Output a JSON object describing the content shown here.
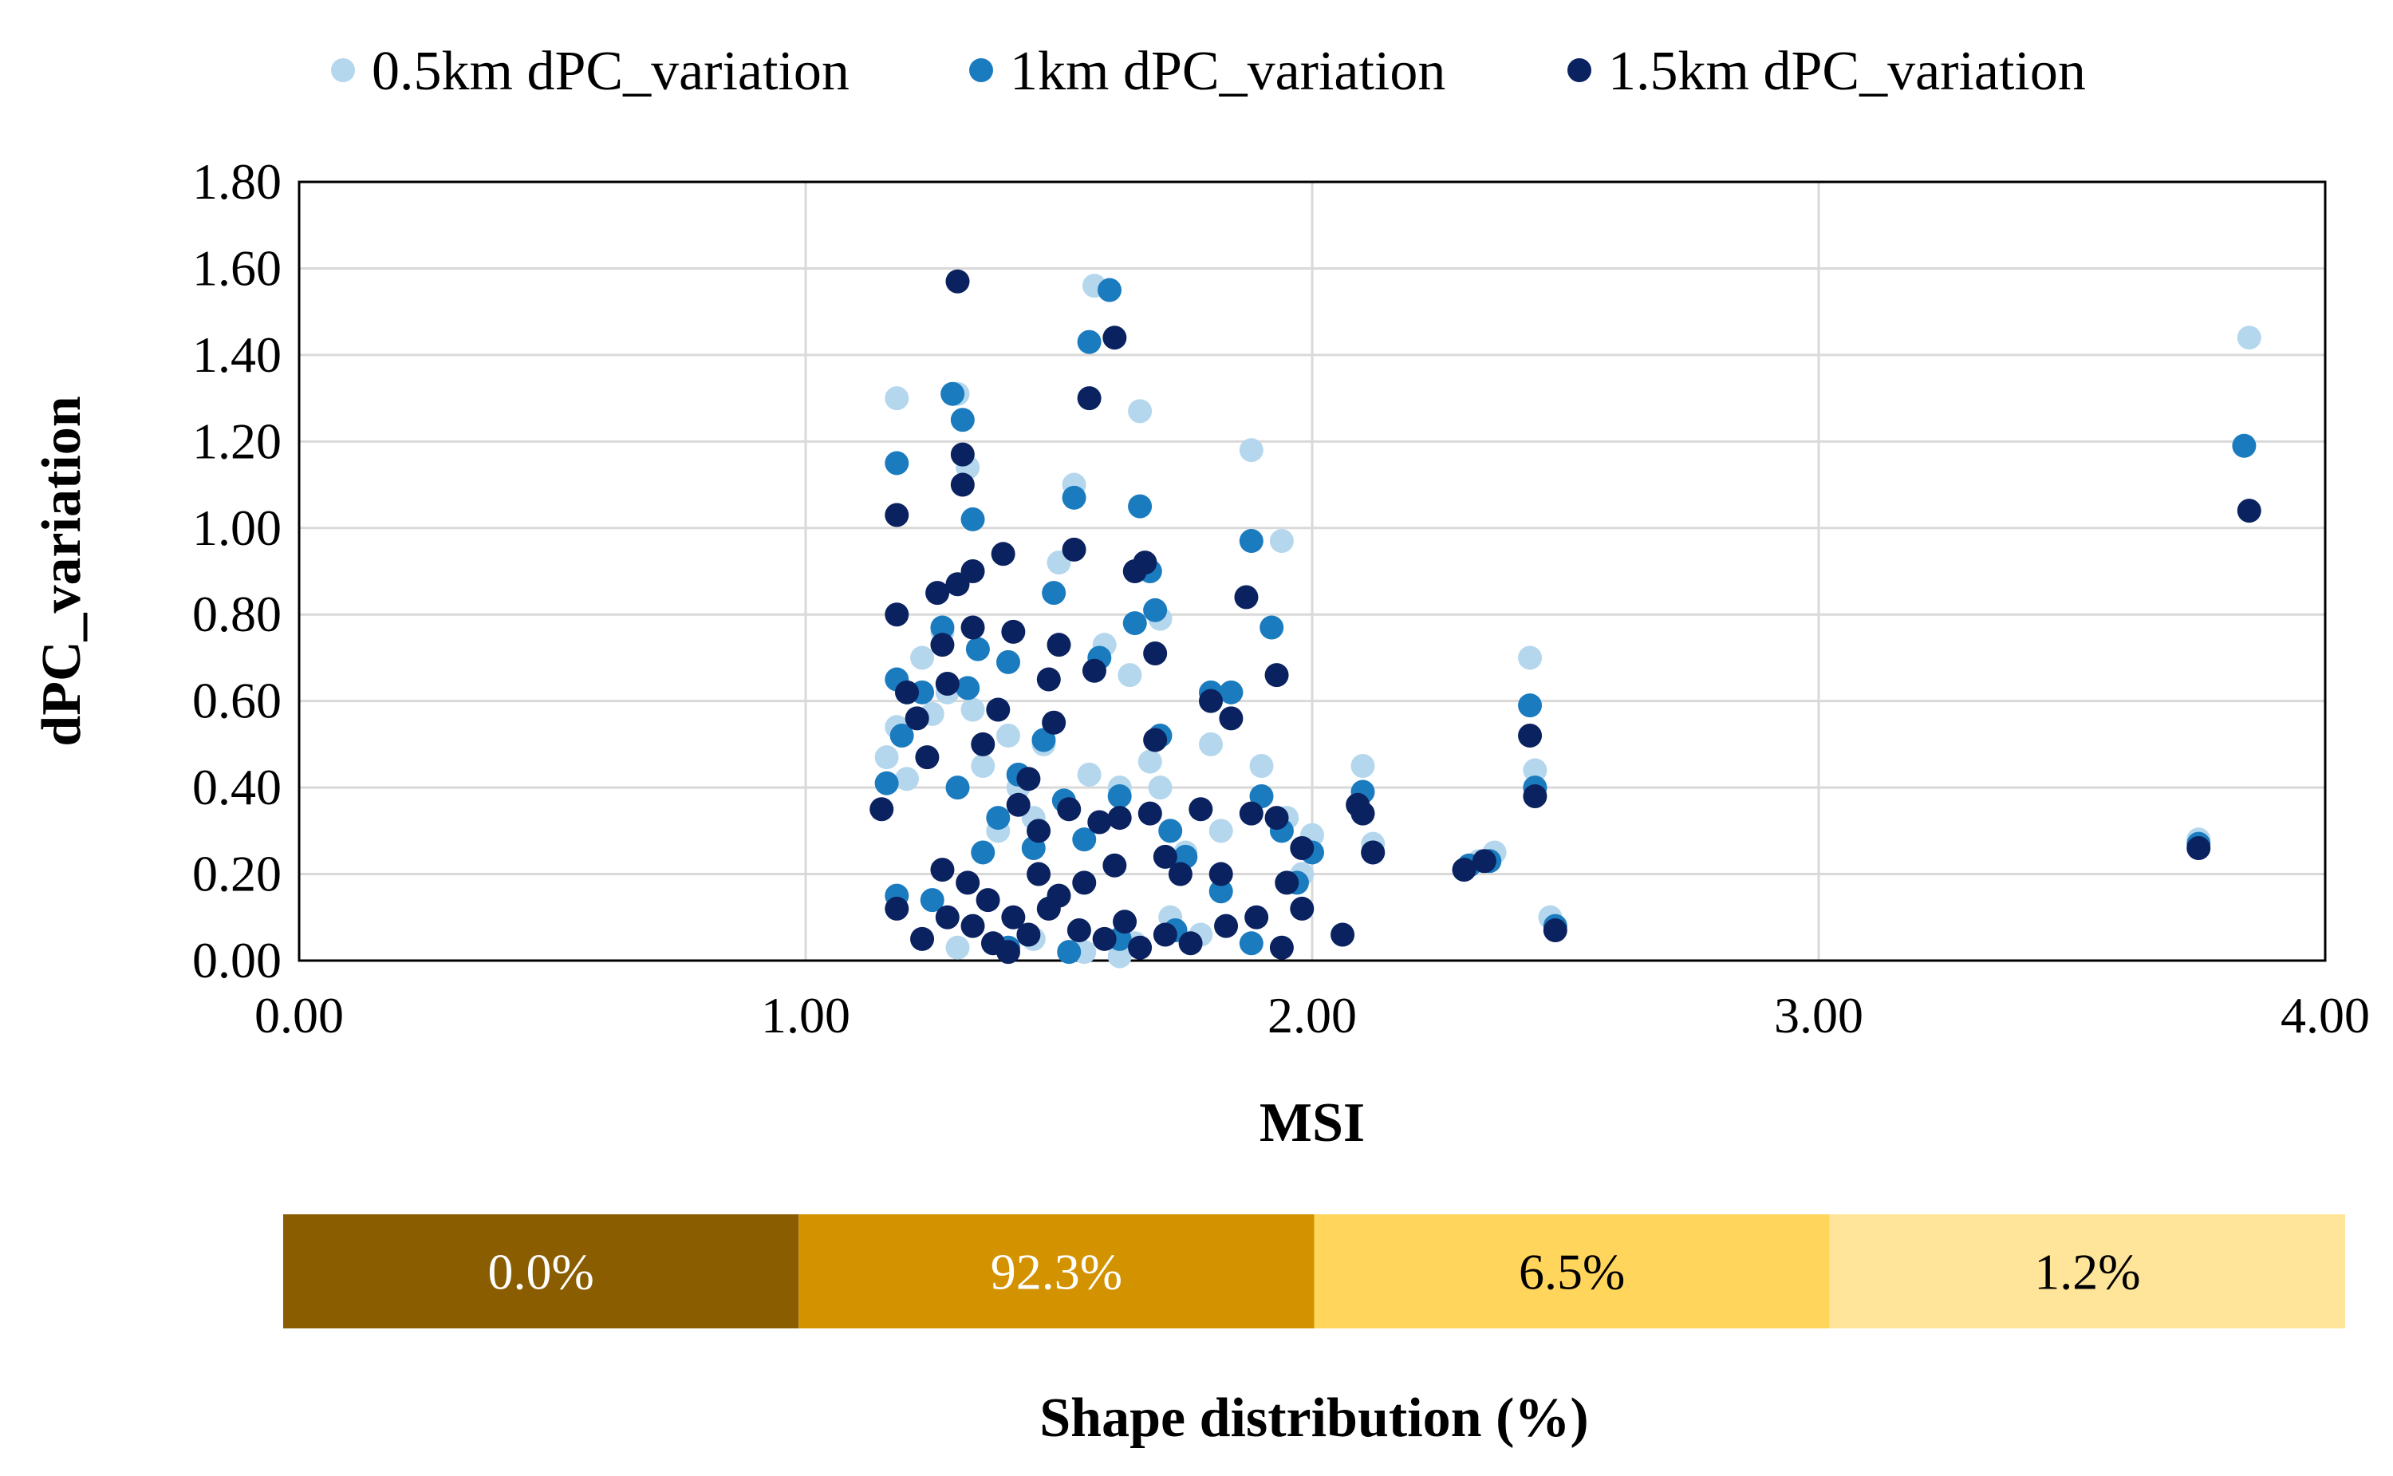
{
  "chart_data": [
    {
      "type": "scatter",
      "xlabel": "MSI",
      "ylabel": "dPC_variation",
      "xlim": [
        0,
        4
      ],
      "ylim": [
        0,
        1.8
      ],
      "x_ticks": [
        "0.00",
        "1.00",
        "2.00",
        "3.00",
        "4.00"
      ],
      "y_ticks": [
        "0.00",
        "0.20",
        "0.40",
        "0.60",
        "0.80",
        "1.00",
        "1.20",
        "1.40",
        "1.60",
        "1.80"
      ],
      "grid": true,
      "legend_position": "top",
      "series": [
        {
          "name": "0.5km dPC_variation",
          "color": "#b4d7ee",
          "points": [
            [
              1.18,
              1.3
            ],
            [
              1.18,
              0.54
            ],
            [
              1.16,
              0.47
            ],
            [
              1.2,
              0.42
            ],
            [
              1.23,
              0.7
            ],
            [
              1.25,
              0.57
            ],
            [
              1.27,
              0.76
            ],
            [
              1.28,
              0.62
            ],
            [
              1.3,
              1.31
            ],
            [
              1.32,
              1.14
            ],
            [
              1.33,
              0.58
            ],
            [
              1.35,
              0.45
            ],
            [
              1.38,
              0.3
            ],
            [
              1.4,
              0.52
            ],
            [
              1.42,
              0.4
            ],
            [
              1.45,
              0.33
            ],
            [
              1.47,
              0.5
            ],
            [
              1.5,
              0.92
            ],
            [
              1.53,
              1.1
            ],
            [
              1.56,
              0.43
            ],
            [
              1.57,
              1.56
            ],
            [
              1.59,
              0.73
            ],
            [
              1.62,
              0.4
            ],
            [
              1.64,
              0.66
            ],
            [
              1.66,
              1.27
            ],
            [
              1.68,
              0.46
            ],
            [
              1.7,
              0.4
            ],
            [
              1.7,
              0.79
            ],
            [
              1.72,
              0.1
            ],
            [
              1.75,
              0.25
            ],
            [
              1.8,
              0.5
            ],
            [
              1.82,
              0.3
            ],
            [
              1.88,
              1.18
            ],
            [
              1.9,
              0.45
            ],
            [
              1.94,
              0.97
            ],
            [
              1.95,
              0.33
            ],
            [
              1.98,
              0.2
            ],
            [
              2.0,
              0.29
            ],
            [
              2.1,
              0.45
            ],
            [
              2.12,
              0.27
            ],
            [
              2.33,
              0.23
            ],
            [
              2.36,
              0.25
            ],
            [
              2.43,
              0.7
            ],
            [
              2.44,
              0.44
            ],
            [
              2.47,
              0.1
            ],
            [
              3.75,
              0.28
            ],
            [
              3.85,
              1.44
            ],
            [
              1.3,
              0.03
            ],
            [
              1.45,
              0.05
            ],
            [
              1.55,
              0.02
            ],
            [
              1.65,
              0.04
            ],
            [
              1.78,
              0.06
            ],
            [
              1.62,
              0.01
            ]
          ]
        },
        {
          "name": "1km dPC_variation",
          "color": "#1b7bbf",
          "points": [
            [
              1.18,
              1.15
            ],
            [
              1.18,
              0.65
            ],
            [
              1.19,
              0.52
            ],
            [
              1.16,
              0.41
            ],
            [
              1.18,
              0.15
            ],
            [
              1.23,
              0.62
            ],
            [
              1.25,
              0.14
            ],
            [
              1.27,
              0.77
            ],
            [
              1.29,
              1.31
            ],
            [
              1.3,
              0.4
            ],
            [
              1.31,
              1.25
            ],
            [
              1.32,
              0.63
            ],
            [
              1.33,
              1.02
            ],
            [
              1.34,
              0.72
            ],
            [
              1.35,
              0.25
            ],
            [
              1.38,
              0.33
            ],
            [
              1.4,
              0.69
            ],
            [
              1.42,
              0.43
            ],
            [
              1.45,
              0.26
            ],
            [
              1.47,
              0.51
            ],
            [
              1.49,
              0.85
            ],
            [
              1.51,
              0.37
            ],
            [
              1.53,
              1.07
            ],
            [
              1.55,
              0.28
            ],
            [
              1.56,
              1.43
            ],
            [
              1.58,
              0.7
            ],
            [
              1.6,
              1.55
            ],
            [
              1.62,
              0.38
            ],
            [
              1.65,
              0.78
            ],
            [
              1.66,
              1.05
            ],
            [
              1.68,
              0.9
            ],
            [
              1.69,
              0.81
            ],
            [
              1.7,
              0.52
            ],
            [
              1.72,
              0.3
            ],
            [
              1.75,
              0.24
            ],
            [
              1.8,
              0.62
            ],
            [
              1.84,
              0.62
            ],
            [
              1.82,
              0.16
            ],
            [
              1.88,
              0.97
            ],
            [
              1.9,
              0.38
            ],
            [
              1.92,
              0.77
            ],
            [
              1.94,
              0.3
            ],
            [
              1.97,
              0.18
            ],
            [
              2.0,
              0.25
            ],
            [
              2.1,
              0.39
            ],
            [
              2.12,
              0.25
            ],
            [
              2.31,
              0.22
            ],
            [
              2.35,
              0.23
            ],
            [
              2.43,
              0.59
            ],
            [
              2.44,
              0.4
            ],
            [
              2.48,
              0.08
            ],
            [
              3.75,
              0.27
            ],
            [
              3.84,
              1.19
            ],
            [
              1.4,
              0.03
            ],
            [
              1.52,
              0.02
            ],
            [
              1.62,
              0.05
            ],
            [
              1.73,
              0.07
            ],
            [
              1.88,
              0.04
            ]
          ]
        },
        {
          "name": "1.5km dPC_variation",
          "color": "#0b2260",
          "points": [
            [
              1.18,
              1.03
            ],
            [
              1.18,
              0.8
            ],
            [
              1.2,
              0.62
            ],
            [
              1.15,
              0.35
            ],
            [
              1.18,
              0.12
            ],
            [
              1.22,
              0.56
            ],
            [
              1.24,
              0.47
            ],
            [
              1.26,
              0.85
            ],
            [
              1.27,
              0.73
            ],
            [
              1.28,
              0.64
            ],
            [
              1.3,
              1.57
            ],
            [
              1.31,
              1.17
            ],
            [
              1.31,
              1.1
            ],
            [
              1.3,
              0.87
            ],
            [
              1.33,
              0.9
            ],
            [
              1.33,
              0.77
            ],
            [
              1.35,
              0.5
            ],
            [
              1.38,
              0.58
            ],
            [
              1.39,
              0.94
            ],
            [
              1.41,
              0.76
            ],
            [
              1.42,
              0.36
            ],
            [
              1.44,
              0.42
            ],
            [
              1.46,
              0.3
            ],
            [
              1.48,
              0.65
            ],
            [
              1.49,
              0.55
            ],
            [
              1.5,
              0.73
            ],
            [
              1.52,
              0.35
            ],
            [
              1.53,
              0.95
            ],
            [
              1.56,
              1.3
            ],
            [
              1.57,
              0.67
            ],
            [
              1.58,
              0.32
            ],
            [
              1.61,
              1.44
            ],
            [
              1.62,
              0.33
            ],
            [
              1.65,
              0.9
            ],
            [
              1.67,
              0.92
            ],
            [
              1.68,
              0.34
            ],
            [
              1.69,
              0.51
            ],
            [
              1.69,
              0.71
            ],
            [
              1.71,
              0.24
            ],
            [
              1.74,
              0.2
            ],
            [
              1.78,
              0.35
            ],
            [
              1.8,
              0.6
            ],
            [
              1.82,
              0.2
            ],
            [
              1.84,
              0.56
            ],
            [
              1.87,
              0.84
            ],
            [
              1.88,
              0.34
            ],
            [
              1.93,
              0.66
            ],
            [
              1.93,
              0.33
            ],
            [
              1.95,
              0.18
            ],
            [
              1.98,
              0.26
            ],
            [
              1.98,
              0.12
            ],
            [
              2.06,
              0.06
            ],
            [
              2.09,
              0.36
            ],
            [
              2.1,
              0.34
            ],
            [
              2.12,
              0.25
            ],
            [
              2.3,
              0.21
            ],
            [
              2.34,
              0.23
            ],
            [
              2.43,
              0.52
            ],
            [
              2.44,
              0.38
            ],
            [
              2.48,
              0.07
            ],
            [
              3.75,
              0.26
            ],
            [
              3.85,
              1.04
            ],
            [
              1.23,
              0.05
            ],
            [
              1.28,
              0.1
            ],
            [
              1.33,
              0.08
            ],
            [
              1.37,
              0.04
            ],
            [
              1.41,
              0.1
            ],
            [
              1.44,
              0.06
            ],
            [
              1.48,
              0.12
            ],
            [
              1.54,
              0.07
            ],
            [
              1.59,
              0.05
            ],
            [
              1.63,
              0.09
            ],
            [
              1.66,
              0.03
            ],
            [
              1.71,
              0.06
            ],
            [
              1.76,
              0.04
            ],
            [
              1.83,
              0.08
            ],
            [
              1.89,
              0.1
            ],
            [
              1.94,
              0.03
            ],
            [
              1.36,
              0.14
            ],
            [
              1.27,
              0.21
            ],
            [
              1.32,
              0.18
            ],
            [
              1.46,
              0.2
            ],
            [
              1.55,
              0.18
            ],
            [
              1.61,
              0.22
            ],
            [
              1.4,
              0.02
            ],
            [
              1.5,
              0.15
            ]
          ]
        }
      ]
    },
    {
      "type": "bar",
      "orientation": "horizontal-stacked",
      "xlabel": "Shape distribution (%)",
      "categories": [
        "0.0%",
        "92.3%",
        "6.5%",
        "1.2%"
      ],
      "ranges": [
        [
          0,
          1
        ],
        [
          1,
          2
        ],
        [
          2,
          3
        ],
        [
          3,
          4
        ]
      ],
      "values": [
        0.0,
        92.3,
        6.5,
        1.2
      ],
      "colors": [
        "#8a5d00",
        "#d39200",
        "#ffd55c",
        "#ffe59a"
      ],
      "label_colors": [
        "#ffffff",
        "#ffffff",
        "#000000",
        "#000000"
      ]
    }
  ]
}
